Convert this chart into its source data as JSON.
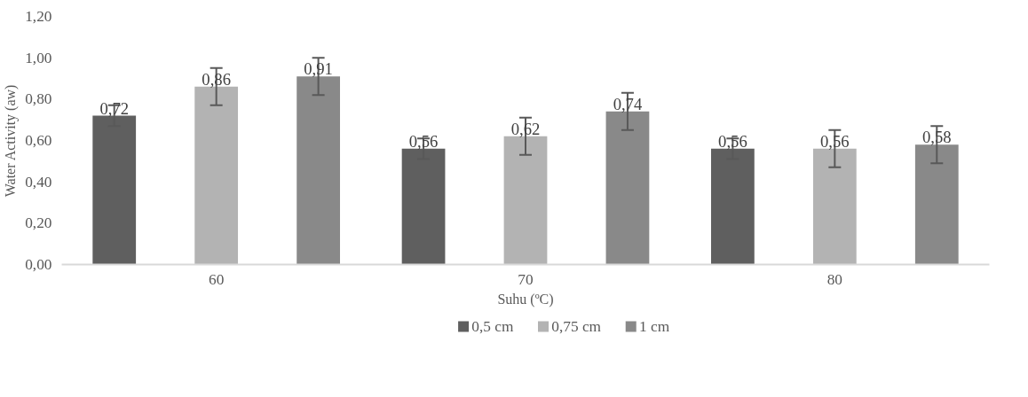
{
  "chart_data": {
    "type": "bar",
    "categories": [
      "60",
      "70",
      "80"
    ],
    "xlabel": "Suhu (ºC)",
    "ylabel": "Water Activity (aw)",
    "ylim": [
      0,
      1.2
    ],
    "yticks": [
      {
        "value": 0,
        "label": "0,00"
      },
      {
        "value": 0.2,
        "label": "0,20"
      },
      {
        "value": 0.4,
        "label": "0,40"
      },
      {
        "value": 0.6,
        "label": "0,60"
      },
      {
        "value": 0.8,
        "label": "0,80"
      },
      {
        "value": 1.0,
        "label": "1,00"
      },
      {
        "value": 1.2,
        "label": "1,20"
      }
    ],
    "grid": false,
    "legend": "bottom",
    "series": [
      {
        "name": "0,5 cm",
        "color": "#5f5f5f",
        "values": [
          0.72,
          0.56,
          0.56
        ],
        "value_labels": [
          "0,72",
          "0,56",
          "0,56"
        ],
        "errors": [
          0.05,
          0.05,
          0.05
        ]
      },
      {
        "name": "0,75 cm",
        "color": "#b3b3b3",
        "values": [
          0.86,
          0.62,
          0.56
        ],
        "value_labels": [
          "0,86",
          "0,62",
          "0,56"
        ],
        "errors": [
          0.09,
          0.09,
          0.09
        ]
      },
      {
        "name": "1 cm",
        "color": "#898989",
        "values": [
          0.91,
          0.74,
          0.58
        ],
        "value_labels": [
          "0,91",
          "0,74",
          "0,58"
        ],
        "errors": [
          0.09,
          0.09,
          0.09
        ]
      }
    ]
  }
}
